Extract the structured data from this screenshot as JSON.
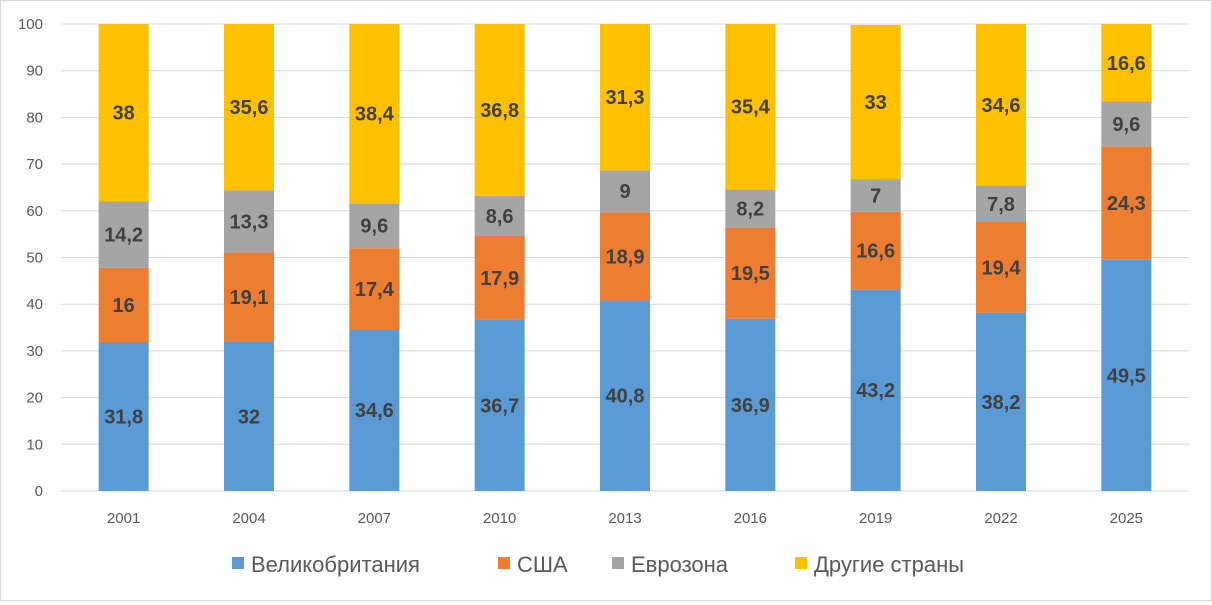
{
  "chart_data": {
    "type": "bar",
    "stacked": true,
    "categories": [
      "2001",
      "2004",
      "2007",
      "2010",
      "2013",
      "2016",
      "2019",
      "2022",
      "2025"
    ],
    "series": [
      {
        "name": "Великобритания",
        "color": "#5B9BD5",
        "values": [
          31.8,
          32,
          34.6,
          36.7,
          40.8,
          36.9,
          43.2,
          38.2,
          49.5
        ],
        "labels": [
          "31,8",
          "32",
          "34,6",
          "36,7",
          "40,8",
          "36,9",
          "43,2",
          "38,2",
          "49,5"
        ]
      },
      {
        "name": "США",
        "color": "#ED7D31",
        "values": [
          16,
          19.1,
          17.4,
          17.9,
          18.9,
          19.5,
          16.6,
          19.4,
          24.3
        ],
        "labels": [
          "16",
          "19,1",
          "17,4",
          "17,9",
          "18,9",
          "19,5",
          "16,6",
          "19,4",
          "24,3"
        ]
      },
      {
        "name": "Еврозона",
        "color": "#A5A5A5",
        "values": [
          14.2,
          13.3,
          9.6,
          8.6,
          9,
          8.2,
          7,
          7.8,
          9.6
        ],
        "labels": [
          "14,2",
          "13,3",
          "9,6",
          "8,6",
          "9",
          "8,2",
          "7",
          "7,8",
          "9,6"
        ]
      },
      {
        "name": "Другие страны",
        "color": "#FFC000",
        "values": [
          38,
          35.6,
          38.4,
          36.8,
          31.3,
          35.4,
          33,
          34.6,
          16.6
        ],
        "labels": [
          "38",
          "35,6",
          "38,4",
          "36,8",
          "31,3",
          "35,4",
          "33",
          "34,6",
          "16,6"
        ]
      }
    ],
    "ylim": [
      0,
      100
    ],
    "yticks": [
      "0",
      "10",
      "20",
      "30",
      "40",
      "50",
      "60",
      "70",
      "80",
      "90",
      "100"
    ],
    "grid": true,
    "legend_position": "bottom",
    "title": "",
    "xlabel": "",
    "ylabel": ""
  }
}
